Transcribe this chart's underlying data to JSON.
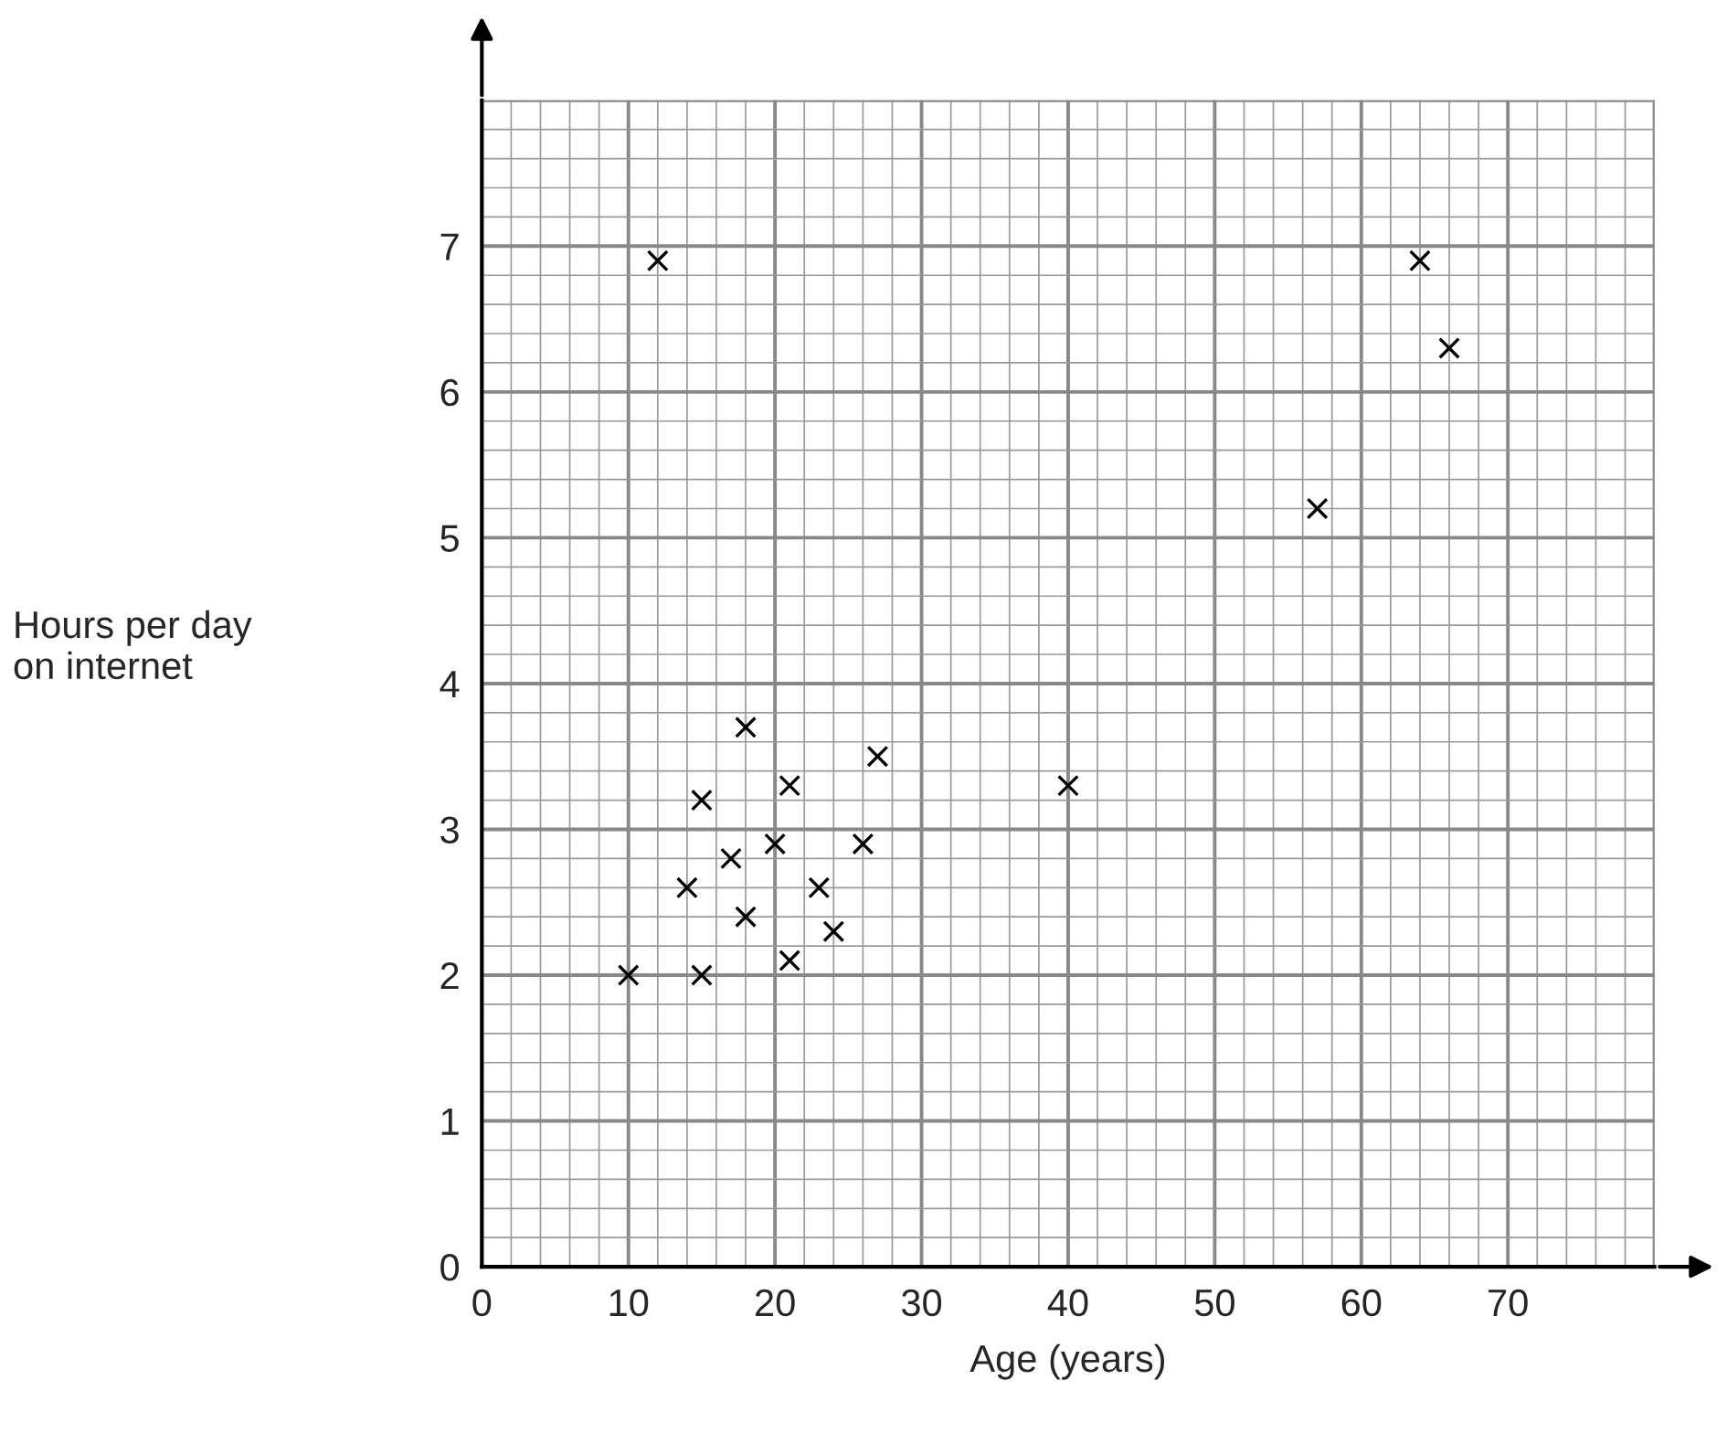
{
  "chart_data": {
    "type": "scatter",
    "xlabel": "Age (years)",
    "ylabel": "Hours per day\non internet",
    "x": [
      10,
      12,
      15,
      15,
      14,
      17,
      18,
      18,
      20,
      21,
      21,
      23,
      24,
      26,
      27,
      40,
      57,
      64,
      66
    ],
    "values": [
      2.0,
      6.9,
      2.0,
      3.2,
      2.6,
      2.8,
      2.4,
      3.7,
      2.9,
      3.3,
      2.1,
      2.6,
      2.3,
      2.9,
      3.5,
      3.3,
      5.2,
      6.9,
      6.3
    ],
    "color": "#000000",
    "marker": "cross",
    "xlim": [
      0,
      80
    ],
    "ylim": [
      0,
      8
    ],
    "xticks": [
      0,
      10,
      20,
      30,
      40,
      50,
      60,
      70
    ],
    "yticks": [
      0,
      1,
      2,
      3,
      4,
      5,
      6,
      7
    ],
    "grid": true
  }
}
